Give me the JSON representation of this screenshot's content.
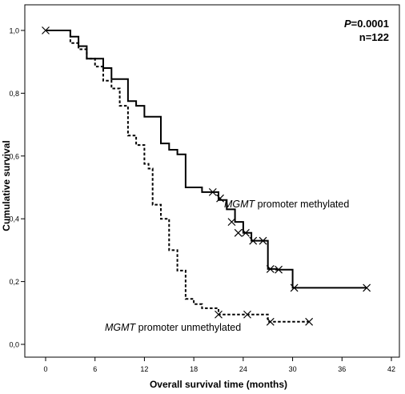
{
  "chart_data": {
    "type": "line",
    "xlabel": "Overall survival time (months)",
    "ylabel": "Cumulative survival",
    "xlim": [
      -3,
      42
    ],
    "ylim": [
      -0.05,
      1.05
    ],
    "x_ticks": [
      0,
      6,
      12,
      18,
      24,
      30,
      36,
      42
    ],
    "x_tick_labels": [
      "0",
      "6",
      "12",
      "18",
      "24",
      "30",
      "36",
      "42"
    ],
    "y_ticks": [
      0.0,
      0.2,
      0.4,
      0.6,
      0.8,
      1.0
    ],
    "y_tick_labels": [
      "0,0",
      "0,2",
      "0,4",
      "0,6",
      "0,8",
      "1,0"
    ],
    "grid": false,
    "stats": {
      "p_prefix": "P",
      "p_value": "=0.0001",
      "n_text": "n=122"
    },
    "series": [
      {
        "name_italic": "MGMT",
        "name_rest": " promoter methylated",
        "line_style": "solid",
        "steps": [
          [
            0,
            1.0
          ],
          [
            3,
            0.98
          ],
          [
            4,
            0.95
          ],
          [
            5,
            0.91
          ],
          [
            7,
            0.88
          ],
          [
            8,
            0.845
          ],
          [
            10,
            0.775
          ],
          [
            11,
            0.76
          ],
          [
            12,
            0.725
          ],
          [
            14,
            0.64
          ],
          [
            15,
            0.62
          ],
          [
            16,
            0.605
          ],
          [
            17,
            0.5
          ],
          [
            19,
            0.485
          ],
          [
            21,
            0.46
          ],
          [
            22,
            0.43
          ],
          [
            23,
            0.39
          ],
          [
            24,
            0.355
          ],
          [
            25,
            0.33
          ],
          [
            27,
            0.24
          ],
          [
            28,
            0.238
          ],
          [
            30,
            0.18
          ],
          [
            39,
            0.18
          ]
        ],
        "censored": [
          [
            0,
            1.0
          ],
          [
            20.3,
            0.485
          ],
          [
            21.2,
            0.465
          ],
          [
            22.6,
            0.39
          ],
          [
            23.4,
            0.355
          ],
          [
            24.3,
            0.355
          ],
          [
            25.2,
            0.33
          ],
          [
            26.4,
            0.33
          ],
          [
            27.3,
            0.24
          ],
          [
            28.3,
            0.238
          ],
          [
            30.2,
            0.18
          ],
          [
            39,
            0.18
          ]
        ]
      },
      {
        "name_italic": "MGMT",
        "name_rest": " promoter unmethylated",
        "line_style": "dashed",
        "steps": [
          [
            0,
            1.0
          ],
          [
            3,
            0.96
          ],
          [
            4,
            0.94
          ],
          [
            5,
            0.91
          ],
          [
            6,
            0.885
          ],
          [
            7,
            0.84
          ],
          [
            8,
            0.815
          ],
          [
            9,
            0.76
          ],
          [
            10,
            0.665
          ],
          [
            11,
            0.635
          ],
          [
            12,
            0.575
          ],
          [
            12.5,
            0.56
          ],
          [
            13,
            0.445
          ],
          [
            14,
            0.4
          ],
          [
            15,
            0.3
          ],
          [
            16,
            0.235
          ],
          [
            17,
            0.145
          ],
          [
            18,
            0.128
          ],
          [
            19,
            0.115
          ],
          [
            21,
            0.095
          ],
          [
            27,
            0.072
          ],
          [
            32,
            0.072
          ]
        ],
        "censored": [
          [
            21,
            0.095
          ],
          [
            24.5,
            0.095
          ],
          [
            27.3,
            0.072
          ],
          [
            32,
            0.072
          ]
        ]
      }
    ]
  }
}
